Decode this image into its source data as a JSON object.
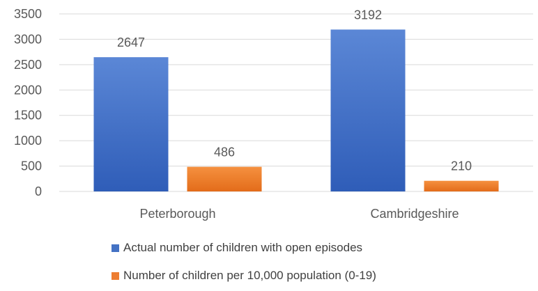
{
  "chart_data": {
    "type": "bar",
    "categories": [
      "Peterborough",
      "Cambridgeshire"
    ],
    "series": [
      {
        "name": "Actual number of children with open episodes",
        "values": [
          2647,
          3192
        ],
        "color": "#4472C4"
      },
      {
        "name": "Number of children per 10,000 population (0-19)",
        "values": [
          486,
          210
        ],
        "color": "#ED7D31"
      }
    ],
    "yticks": [
      "0",
      "500",
      "1000",
      "1500",
      "2000",
      "2500",
      "3000",
      "3500"
    ],
    "ylim": [
      0,
      3500
    ],
    "grid": true,
    "legend_position": "bottom",
    "title": "",
    "xlabel": "",
    "ylabel": ""
  }
}
